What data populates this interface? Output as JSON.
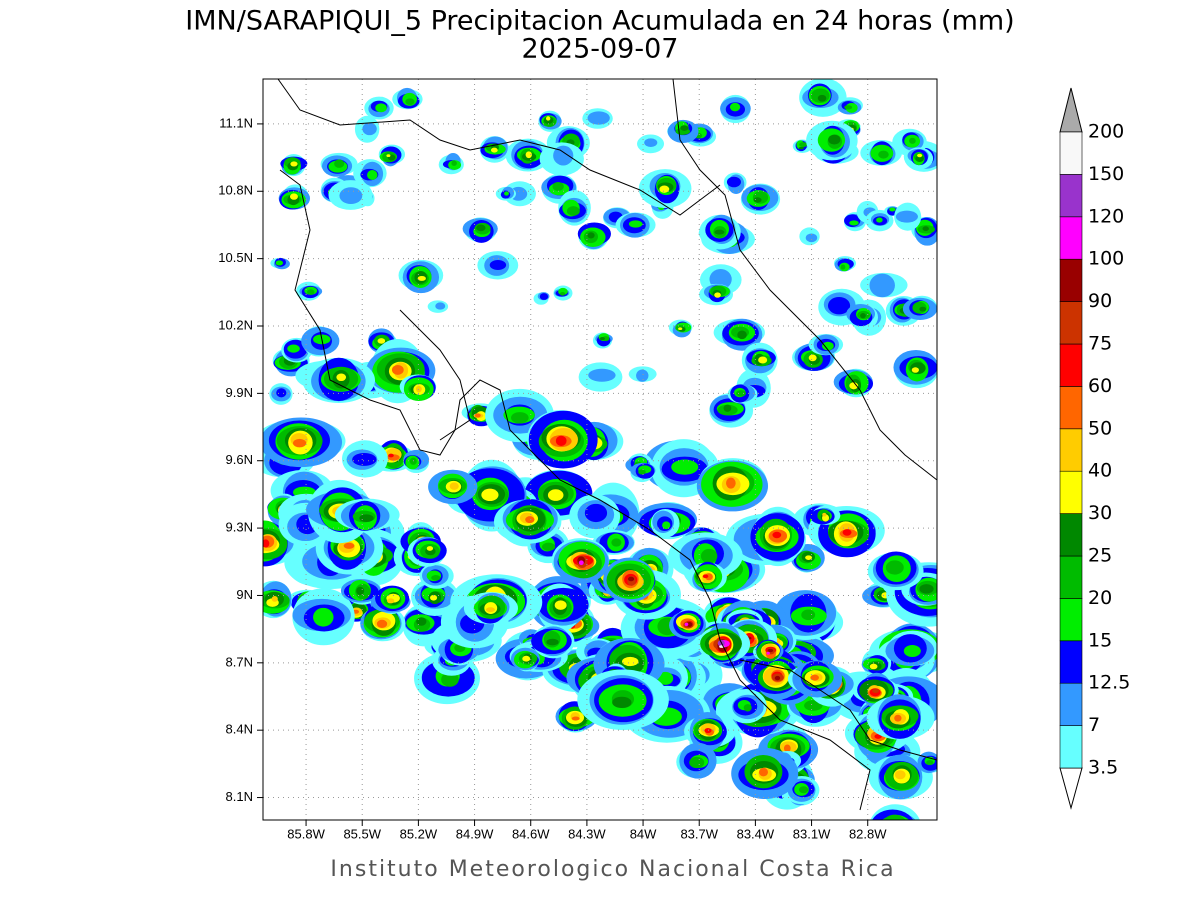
{
  "title": "IMN/SARAPIQUI_5 Precipitacion Acumulada en 24 horas (mm)",
  "subtitle": "2025-09-07",
  "footer": "Instituto Meteorologico Nacional Costa Rica",
  "map": {
    "xlim": [
      -86.03,
      -82.43
    ],
    "ylim": [
      8.0,
      11.3
    ],
    "xticks": [
      {
        "value": -85.8,
        "label": "85.8W"
      },
      {
        "value": -85.5,
        "label": "85.5W"
      },
      {
        "value": -85.2,
        "label": "85.2W"
      },
      {
        "value": -84.9,
        "label": "84.9W"
      },
      {
        "value": -84.6,
        "label": "84.6W"
      },
      {
        "value": -84.3,
        "label": "84.3W"
      },
      {
        "value": -84.0,
        "label": "84W"
      },
      {
        "value": -83.7,
        "label": "83.7W"
      },
      {
        "value": -83.4,
        "label": "83.4W"
      },
      {
        "value": -83.1,
        "label": "83.1W"
      },
      {
        "value": -82.8,
        "label": "82.8W"
      }
    ],
    "yticks": [
      {
        "value": 8.1,
        "label": "8.1N"
      },
      {
        "value": 8.4,
        "label": "8.4N"
      },
      {
        "value": 8.7,
        "label": "8.7N"
      },
      {
        "value": 9.0,
        "label": "9N"
      },
      {
        "value": 9.3,
        "label": "9.3N"
      },
      {
        "value": 9.6,
        "label": "9.6N"
      },
      {
        "value": 9.9,
        "label": "9.9N"
      },
      {
        "value": 10.2,
        "label": "10.2N"
      },
      {
        "value": 10.5,
        "label": "10.5N"
      },
      {
        "value": 10.8,
        "label": "10.8N"
      },
      {
        "value": 11.1,
        "label": "11.1N"
      }
    ],
    "grid": true
  },
  "colorbar": {
    "levels": [
      3.5,
      7,
      12.5,
      15,
      20,
      25,
      30,
      40,
      50,
      60,
      75,
      90,
      100,
      120,
      150,
      200
    ],
    "colors": [
      "#ffffff",
      "#66ffff",
      "#3399ff",
      "#0000ff",
      "#00ee00",
      "#00bb00",
      "#008800",
      "#ffff00",
      "#ffcc00",
      "#ff6600",
      "#ff0000",
      "#cc3300",
      "#990000",
      "#ff00ff",
      "#9933cc",
      "#f8f8f8",
      "#aaaaaa"
    ]
  }
}
